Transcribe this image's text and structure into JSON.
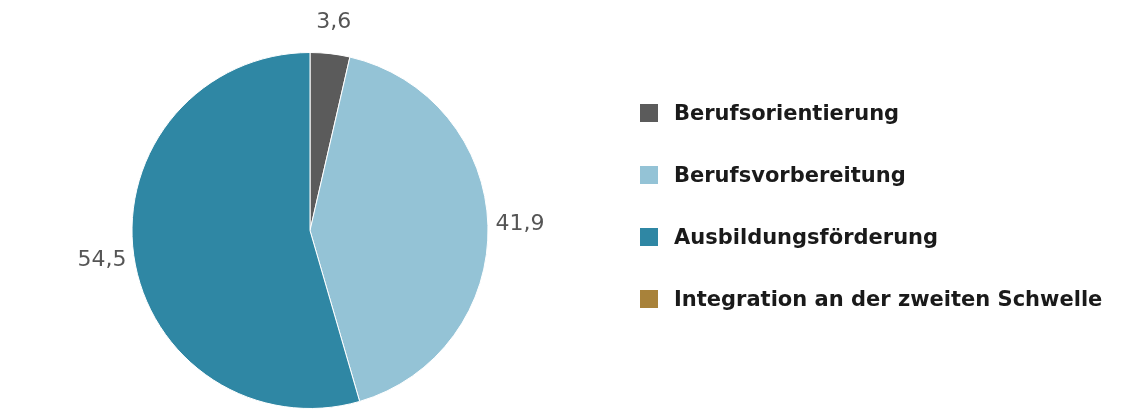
{
  "chart_data": {
    "type": "pie",
    "categories": [
      "Berufsorientierung",
      "Berufsvorbereitung",
      "Ausbildungsförderung",
      "Integration an der zweiten Schwelle"
    ],
    "values": [
      3.6,
      41.9,
      54.5,
      0
    ],
    "colors": [
      "#5b5b5b",
      "#94c3d6",
      "#2f87a4",
      "#a8823a"
    ],
    "value_labels": [
      "3,6",
      "41,9",
      "54,5",
      null
    ],
    "legend": "right"
  }
}
